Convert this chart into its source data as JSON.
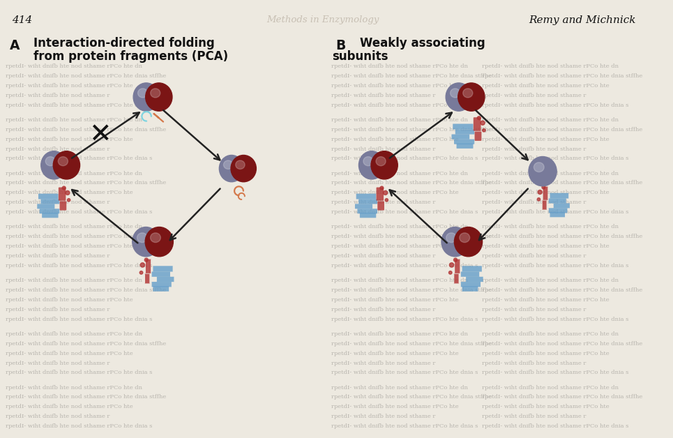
{
  "bg_color": "#ede9e0",
  "page_number": "414",
  "header_right": "Remy and Michnick",
  "panel_A_bold": "A",
  "panel_A_line1": "Interaction-directed folding",
  "panel_A_line2": "from protein fragments (PCA)",
  "panel_B_bold": "B",
  "panel_B_line1": "Weakly associating",
  "panel_B_line2": "subunits",
  "faded_color": "#b8b5ae",
  "main_text_color": "#111111",
  "arrow_color": "#222222",
  "sphere_red": "#7B1515",
  "sphere_gray_blue": "#787A9A",
  "sphere_gray_light": "#9A9BB5",
  "linker_cyan": "#7DD4E0",
  "linker_orange": "#D4784A",
  "protein_blue": "#5B99C8",
  "protein_red": "#B03030",
  "cross_color": "#111111"
}
